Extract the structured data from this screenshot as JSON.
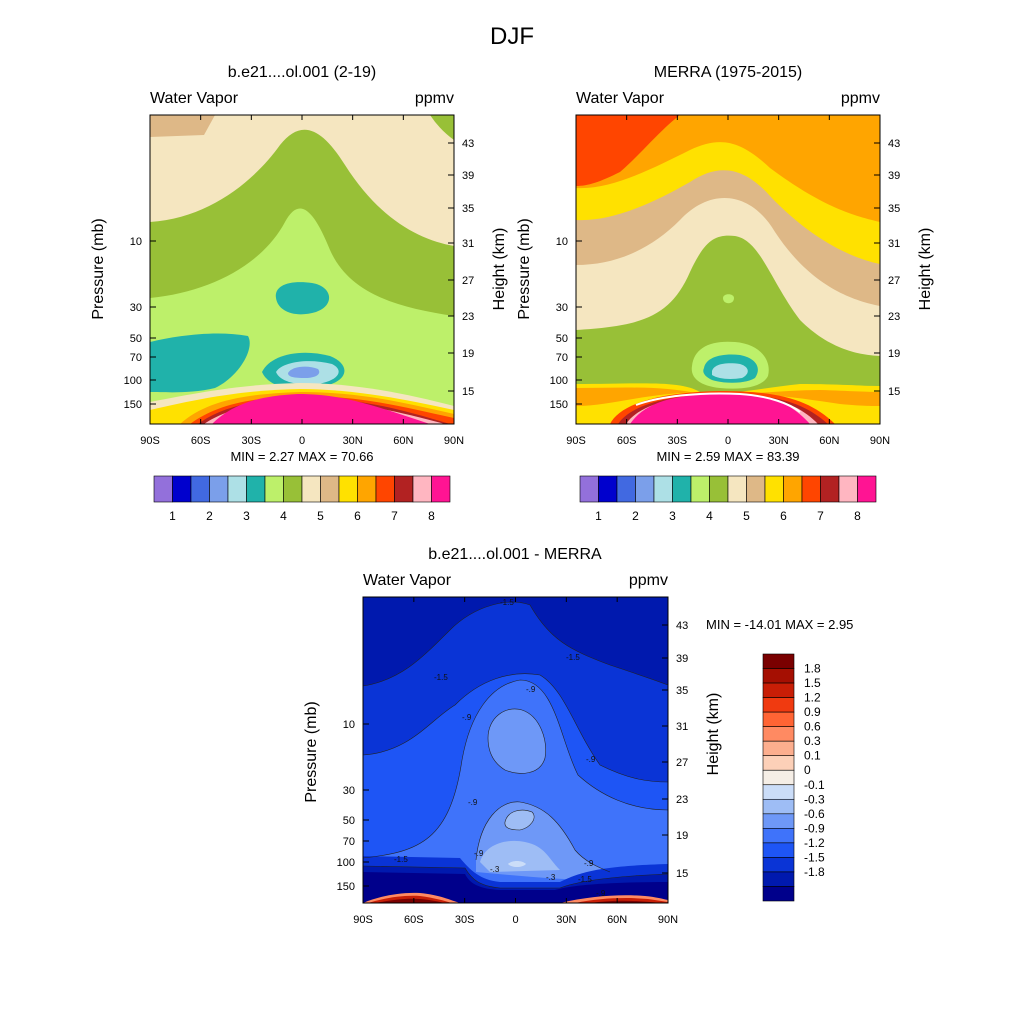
{
  "title": "DJF",
  "colors": {
    "levels": [
      "#9370DB",
      "#0000CD",
      "#4169E1",
      "#7B9FEA",
      "#ADE0E6",
      "#20B2AA",
      "#BDF06A",
      "#98C037",
      "#F5E6C0",
      "#DEB887",
      "#FFE100",
      "#FFA500",
      "#FF4500",
      "#B22222",
      "#FFB6C1",
      "#FF1493"
    ],
    "diff": [
      "#00008B",
      "#0019AE",
      "#0A34D6",
      "#1E55F5",
      "#3F73FA",
      "#6E98F7",
      "#9EBDF5",
      "#CBDDF8",
      "#F5EEE6",
      "#FCD0B8",
      "#FCAE8E",
      "#FF8A62",
      "#FF6434",
      "#F03A10",
      "#C81E06",
      "#A50F02",
      "#7A0000"
    ]
  },
  "chart_data": [
    {
      "type": "heatmap",
      "title": "b.e21....ol.001 (2-19)",
      "left_label": "Water Vapor",
      "right_label": "ppmv",
      "xlabel": "",
      "ylabel": "Pressure (mb)",
      "y2label": "Height (km)",
      "x_ticks": [
        "90S",
        "60S",
        "30S",
        "0",
        "30N",
        "60N",
        "90N"
      ],
      "y_ticks": [
        "10",
        "30",
        "50",
        "70",
        "100",
        "150"
      ],
      "y2_ticks": [
        "43",
        "39",
        "35",
        "31",
        "27",
        "23",
        "19",
        "15"
      ],
      "min_max": "MIN =   2.27  MAX =  70.66",
      "colorbar_labels": [
        "1",
        "2",
        "3",
        "4",
        "5",
        "6",
        "7",
        "8"
      ]
    },
    {
      "type": "heatmap",
      "title": "MERRA (1975-2015)",
      "left_label": "Water Vapor",
      "right_label": "ppmv",
      "xlabel": "",
      "ylabel": "Pressure (mb)",
      "y2label": "Height (km)",
      "x_ticks": [
        "90S",
        "60S",
        "30S",
        "0",
        "30N",
        "60N",
        "90N"
      ],
      "y_ticks": [
        "10",
        "30",
        "50",
        "70",
        "100",
        "150"
      ],
      "y2_ticks": [
        "43",
        "39",
        "35",
        "31",
        "27",
        "23",
        "19",
        "15"
      ],
      "min_max": "MIN =   2.59  MAX =  83.39",
      "colorbar_labels": [
        "1",
        "2",
        "3",
        "4",
        "5",
        "6",
        "7",
        "8"
      ]
    },
    {
      "type": "heatmap",
      "title": "b.e21....ol.001 - MERRA",
      "left_label": "Water Vapor",
      "right_label": "ppmv",
      "xlabel": "",
      "ylabel": "Pressure (mb)",
      "y2label": "Height (km)",
      "x_ticks": [
        "90S",
        "60S",
        "30S",
        "0",
        "30N",
        "60N",
        "90N"
      ],
      "y_ticks": [
        "10",
        "30",
        "50",
        "70",
        "100",
        "150"
      ],
      "y2_ticks": [
        "43",
        "39",
        "35",
        "31",
        "27",
        "23",
        "19",
        "15"
      ],
      "min_max": "MIN = -14.01  MAX =   2.95",
      "colorbar_labels": [
        "1.8",
        "1.5",
        "1.2",
        "0.9",
        "0.6",
        "0.3",
        "0.1",
        "0",
        "-0.1",
        "-0.3",
        "-0.6",
        "-0.9",
        "-1.2",
        "-1.5",
        "-1.8"
      ],
      "contour_labels": [
        "-1.5",
        "-1.5",
        "-1.5",
        "-.9",
        "-.9",
        "-.9",
        "-.9",
        "-.9",
        "-.3",
        "-.9",
        "-1.5",
        "-.9",
        "-1.5",
        "-.3"
      ]
    }
  ]
}
